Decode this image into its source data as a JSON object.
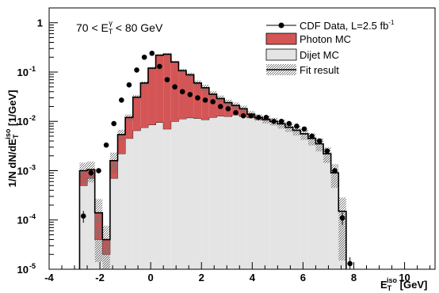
{
  "chart_data": {
    "type": "histogram",
    "annotation": {
      "prefix": "70 < E",
      "sup": "γ",
      "sub": "T",
      "suffix": " < 80 GeV"
    },
    "ylabel": {
      "main": "1/N dN/dE",
      "sup": "iso",
      "sub": "T",
      "unit": " [1/GeV]"
    },
    "xlabel": {
      "main": "E",
      "sup": "iso",
      "sub": "T",
      "unit": " [GeV]"
    },
    "xlim": [
      -4,
      11.2
    ],
    "ylim": [
      1e-05,
      2
    ],
    "yscale": "log",
    "x_ticks": [
      {
        "value": -4,
        "label": "-4"
      },
      {
        "value": -2,
        "label": "-2"
      },
      {
        "value": 0,
        "label": "0"
      },
      {
        "value": 2,
        "label": "2"
      },
      {
        "value": 4,
        "label": "4"
      },
      {
        "value": 6,
        "label": "6"
      },
      {
        "value": 8,
        "label": "8"
      },
      {
        "value": 10,
        "label": "10"
      }
    ],
    "y_ticks": [
      {
        "value": 1,
        "base": "1",
        "exp": ""
      },
      {
        "value": 0.1,
        "base": "10",
        "exp": "-1"
      },
      {
        "value": 0.01,
        "base": "10",
        "exp": "-2"
      },
      {
        "value": 0.001,
        "base": "10",
        "exp": "-3"
      },
      {
        "value": 0.0001,
        "base": "10",
        "exp": "-4"
      },
      {
        "value": 1e-05,
        "base": "10",
        "exp": "-5"
      }
    ],
    "bin_edges": [
      -2.8,
      -2.5,
      -2.2,
      -1.9,
      -1.6,
      -1.3,
      -1.0,
      -0.7,
      -0.4,
      -0.1,
      0.2,
      0.5,
      0.8,
      1.1,
      1.4,
      1.7,
      2.0,
      2.3,
      2.6,
      2.9,
      3.2,
      3.5,
      3.8,
      4.1,
      4.4,
      4.7,
      5.0,
      5.3,
      5.6,
      5.9,
      6.2,
      6.5,
      6.8,
      7.1,
      7.4,
      7.7
    ],
    "legend": {
      "position": "top-right",
      "entries": [
        {
          "label": "CDF Data, L=2.5 fb",
          "sup": "-1",
          "style": "marker"
        },
        {
          "label": "Photon MC",
          "style": "photon"
        },
        {
          "label": "Dijet MC",
          "style": "dijet"
        },
        {
          "label": "Fit result",
          "style": "fit"
        }
      ]
    },
    "colors": {
      "photon": "#d45555",
      "dijet": "#e4e4e4",
      "fit_band": "#8a8a8a",
      "data": "#000000"
    },
    "series": [
      {
        "name": "Dijet MC",
        "kind": "stacked-bottom",
        "values": [
          0.0005,
          0.0007,
          4e-05,
          2e-05,
          0.0007,
          0.0022,
          0.0045,
          0.0065,
          0.0075,
          0.0085,
          0.0095,
          0.007,
          0.01,
          0.0112,
          0.0118,
          0.0115,
          0.0108,
          0.012,
          0.0128,
          0.0125,
          0.0135,
          0.0125,
          0.0118,
          0.011,
          0.0105,
          0.0098,
          0.0088,
          0.0075,
          0.0065,
          0.0055,
          0.0045,
          0.0035,
          0.0022,
          0.0009,
          0.00015
        ]
      },
      {
        "name": "Photon MC",
        "kind": "stacked-top",
        "values": [
          0.0005,
          0.00035,
          0.0001,
          2e-05,
          0.0009,
          0.0032,
          0.0075,
          0.0245,
          0.0525,
          0.1115,
          0.2105,
          0.223,
          0.15,
          0.0958,
          0.0762,
          0.0485,
          0.0372,
          0.0236,
          0.0162,
          0.0115,
          0.0075,
          0.0055,
          0.0022,
          0.001,
          0.0005,
          0.0002,
          0.0001,
          0.0001,
          0.0001,
          0.0001,
          0.0,
          0.0,
          0.0,
          0.0,
          0.0
        ]
      },
      {
        "name": "Fit result",
        "kind": "total-with-band",
        "values": [
          0.001,
          0.00105,
          0.00014,
          4e-05,
          0.0016,
          0.0054,
          0.012,
          0.031,
          0.06,
          0.12,
          0.22,
          0.23,
          0.16,
          0.107,
          0.088,
          0.06,
          0.048,
          0.0356,
          0.029,
          0.024,
          0.021,
          0.018,
          0.014,
          0.012,
          0.011,
          0.01,
          0.0089,
          0.0076,
          0.0066,
          0.0056,
          0.0045,
          0.0035,
          0.0022,
          0.0009,
          0.00015
        ],
        "band": [
          0.45,
          0.45,
          0.9,
          0.9,
          0.45,
          0.25,
          0.15,
          0.1,
          0.08,
          0.06,
          0.05,
          0.05,
          0.06,
          0.08,
          0.1,
          0.12,
          0.15,
          0.15,
          0.15,
          0.15,
          0.15,
          0.15,
          0.15,
          0.15,
          0.18,
          0.18,
          0.2,
          0.2,
          0.22,
          0.25,
          0.28,
          0.3,
          0.35,
          0.5,
          0.9
        ]
      },
      {
        "name": "CDF Data",
        "kind": "points",
        "x": [
          -2.65,
          -2.35,
          -2.05,
          -1.75,
          -1.45,
          -1.15,
          -0.85,
          -0.55,
          -0.25,
          0.05,
          0.35,
          0.65,
          0.95,
          1.25,
          1.55,
          1.85,
          2.15,
          2.45,
          2.75,
          3.05,
          3.35,
          3.65,
          3.95,
          4.25,
          4.55,
          4.85,
          5.15,
          5.45,
          5.75,
          6.05,
          6.35,
          6.65,
          6.95,
          7.25,
          7.55,
          7.85
        ],
        "y": [
          0.00012,
          0.0009,
          0.001,
          0.0033,
          0.009,
          0.027,
          0.055,
          0.11,
          0.2,
          0.24,
          0.13,
          0.07,
          0.05,
          0.04,
          0.035,
          0.03,
          0.027,
          0.025,
          0.02,
          0.018,
          0.015,
          0.013,
          0.013,
          0.012,
          0.012,
          0.01,
          0.01,
          0.009,
          0.008,
          0.007,
          0.005,
          0.004,
          0.0025,
          0.001,
          0.00011,
          1.3e-05
        ]
      }
    ]
  }
}
